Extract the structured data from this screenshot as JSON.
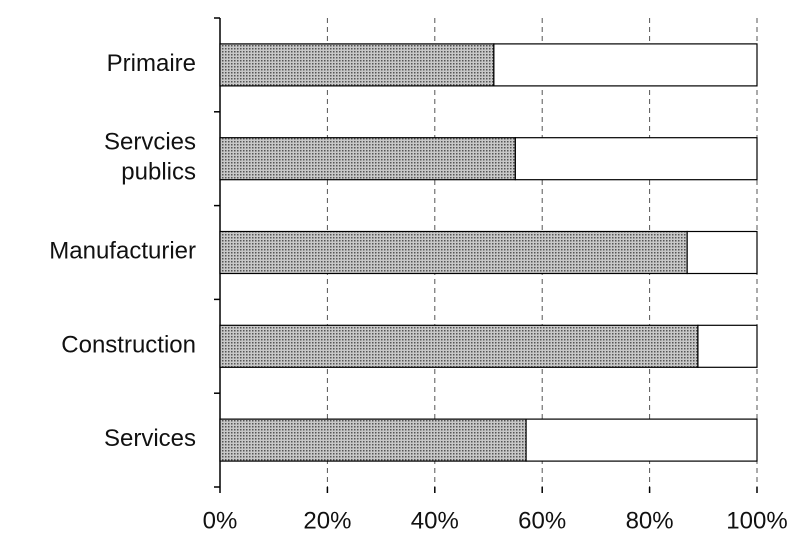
{
  "chart_data": {
    "type": "stacked-bar-horizontal",
    "categories": [
      "Primaire",
      "Servcies\npublics",
      "Manufacturier",
      "Construction",
      "Services"
    ],
    "series": [
      {
        "color": "#9a9a9a",
        "values": [
          51,
          55,
          87,
          89,
          57
        ]
      },
      {
        "color": "#ffffff",
        "values": [
          49,
          45,
          13,
          11,
          43
        ]
      }
    ],
    "xlim": [
      0,
      100
    ],
    "xticks": [
      {
        "value": 0,
        "label": "0%"
      },
      {
        "value": 20,
        "label": "20%"
      },
      {
        "value": 40,
        "label": "40%"
      },
      {
        "value": 60,
        "label": "60%"
      },
      {
        "value": 80,
        "label": "80%"
      },
      {
        "value": 100,
        "label": "100%"
      }
    ],
    "grid": true
  }
}
